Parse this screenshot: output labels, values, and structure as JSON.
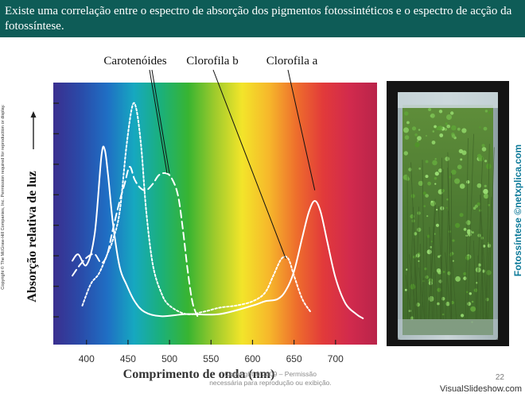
{
  "header": {
    "text": "Existe uma correlação entre o espectro de absorção dos pigmentos fotossintéticos e o espectro de acção da fotossíntese."
  },
  "side_copyright": "Copyright © The McGraw-Hill Companies, Inc. Permission required for reproduction or display.",
  "photo": {
    "credit": "Fotossíntese ©netxplica.com"
  },
  "watermark": {
    "line1": "Copyright © 2009 – Permissão",
    "line2": "necessária para reprodução ou exibição."
  },
  "page_number": "22",
  "site_credit": "VisualSlideshow.com",
  "colors": {
    "header_bg": "#0e5c57",
    "curve": "#ffffff",
    "spectrum": [
      "#3a2f8f",
      "#2a4aa8",
      "#1f6fc4",
      "#16a8c0",
      "#1bb07a",
      "#38b431",
      "#9fcb2c",
      "#f3e52a",
      "#f6b72b",
      "#ee6f2c",
      "#e23a3a",
      "#d12a4d",
      "#b9244a"
    ],
    "photo_credit": "#0d7a99"
  },
  "chart_data": {
    "type": "line",
    "title": "",
    "xlabel": "Comprimento de onda (nm)",
    "ylabel": "Absorção relativa de luz",
    "xlim": [
      360,
      750
    ],
    "ylim": [
      0,
      1
    ],
    "x_ticks": [
      "400",
      "450",
      "500",
      "550",
      "600",
      "650",
      "700"
    ],
    "x_tick_values": [
      400,
      450,
      500,
      550,
      600,
      650,
      700
    ],
    "y_tick_count": 8,
    "background": "visible light spectrum gradient (violet to red)",
    "series": [
      {
        "name": "Clorofila a",
        "style": "solid",
        "x": [
          383,
          390,
          400,
          410,
          418,
          422,
          426,
          432,
          440,
          448,
          458,
          470,
          490,
          520,
          560,
          600,
          615,
          630,
          640,
          650,
          660,
          668,
          675,
          682,
          690,
          700,
          712,
          725,
          733
        ],
        "y": [
          0.27,
          0.3,
          0.25,
          0.4,
          0.76,
          0.79,
          0.67,
          0.44,
          0.24,
          0.16,
          0.08,
          0.03,
          0.01,
          0.02,
          0.02,
          0.06,
          0.08,
          0.09,
          0.13,
          0.22,
          0.38,
          0.5,
          0.55,
          0.5,
          0.36,
          0.19,
          0.07,
          0.02,
          0.0
        ]
      },
      {
        "name": "Clorofila b",
        "style": "dotted",
        "x": [
          395,
          405,
          415,
          425,
          432,
          440,
          448,
          455,
          460,
          466,
          472,
          480,
          490,
          500,
          520,
          540,
          560,
          580,
          600,
          615,
          625,
          635,
          643,
          650,
          660,
          670
        ],
        "y": [
          0.06,
          0.16,
          0.21,
          0.3,
          0.37,
          0.5,
          0.8,
          0.99,
          0.98,
          0.8,
          0.5,
          0.25,
          0.12,
          0.06,
          0.02,
          0.03,
          0.05,
          0.06,
          0.08,
          0.12,
          0.2,
          0.28,
          0.28,
          0.2,
          0.09,
          0.03
        ]
      },
      {
        "name": "Carotenóides",
        "style": "dashed",
        "x": [
          383,
          392,
          402,
          410,
          418,
          425,
          432,
          440,
          446,
          452,
          458,
          465,
          472,
          480,
          487,
          495,
          502,
          510,
          516,
          522,
          528,
          535
        ],
        "y": [
          0.2,
          0.25,
          0.29,
          0.3,
          0.26,
          0.3,
          0.42,
          0.55,
          0.63,
          0.71,
          0.65,
          0.61,
          0.6,
          0.63,
          0.67,
          0.68,
          0.66,
          0.58,
          0.42,
          0.22,
          0.07,
          0.0
        ]
      }
    ]
  }
}
